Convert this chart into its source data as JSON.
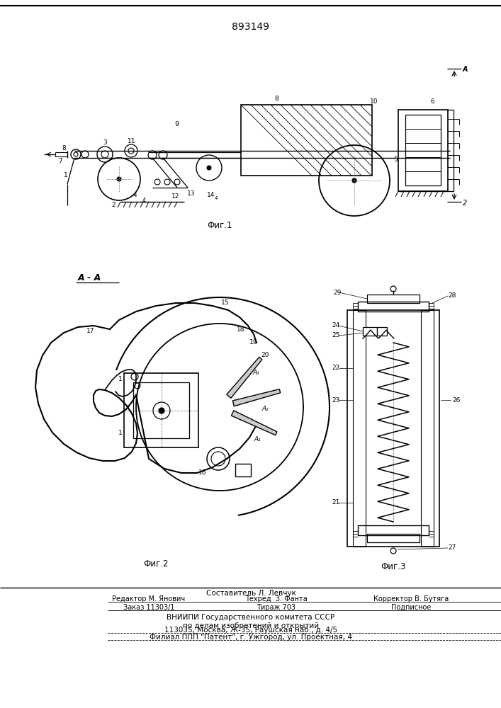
{
  "patent_number": "893149",
  "background_color": "#ffffff",
  "line_color": "#000000",
  "fig_width": 7.07,
  "fig_height": 10.0,
  "fig1_label": "Фиг.1",
  "fig2_label": "Фиг.2",
  "fig3_label": "Фиг.3",
  "section_label": "A - A",
  "footer_line1": "Составитель Л. Левчук",
  "footer_line2": "Редактор М. Янович",
  "footer_line2b": "Техред  3. Фанта",
  "footer_line2c": "Корректор В. Бутяга",
  "footer_line3": "Заказ 11303/1",
  "footer_line3b": "Тираж 703",
  "footer_line3c": "Подписное",
  "footer_line4": "ВНИИПИ Государственного комитета СССР",
  "footer_line5": "по делам изобретений и открытий",
  "footer_line6": "113035, Москва, Ж-35, Раушская наб., д. 4/5",
  "footer_line7": "Филиал ППП \"Патент\", г. Ужгород, ул. Проектная, 4"
}
